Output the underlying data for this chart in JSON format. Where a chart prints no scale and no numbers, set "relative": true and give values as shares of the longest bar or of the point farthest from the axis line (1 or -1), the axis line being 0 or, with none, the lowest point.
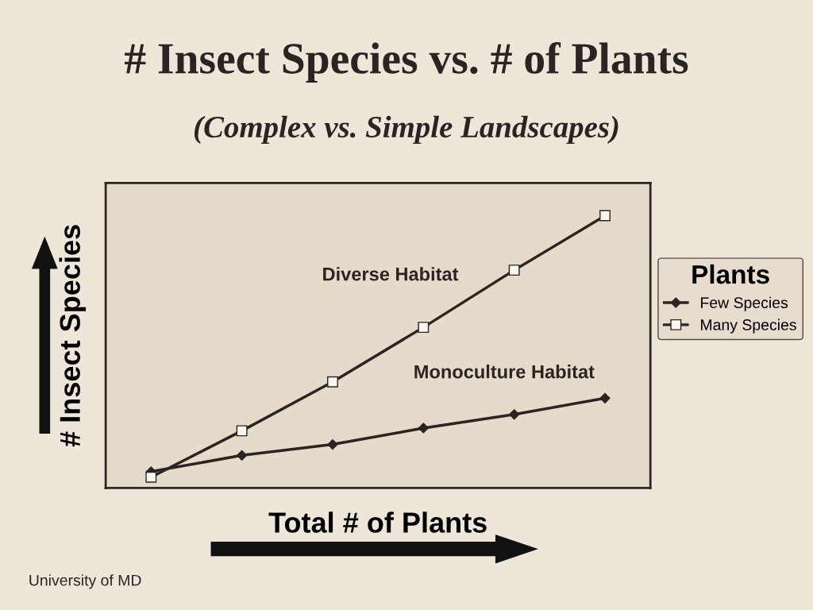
{
  "chart_data": {
    "type": "line",
    "title": "# Insect Species vs. # of Plants",
    "subtitle": "(Complex vs. Simple Landscapes)",
    "xlabel": "Total # of Plants",
    "ylabel": "# Insect Species",
    "legend_title": "Plants",
    "legend": "right",
    "relative": true,
    "grid": false,
    "categories": [
      null,
      null,
      null,
      null,
      null,
      null
    ],
    "series": [
      {
        "name": "Few Species",
        "color": "#2a2522",
        "marker": "diamond",
        "values": [
          0.06,
          0.12,
          0.16,
          0.22,
          0.27,
          0.33
        ]
      },
      {
        "name": "Many Species",
        "color": "#2a2522",
        "marker": "square",
        "values": [
          0.04,
          0.21,
          0.39,
          0.59,
          0.8,
          1.0
        ]
      }
    ],
    "annotations": [
      "Diverse Habitat",
      "Monoculture Habitat",
      "University of MD"
    ]
  }
}
